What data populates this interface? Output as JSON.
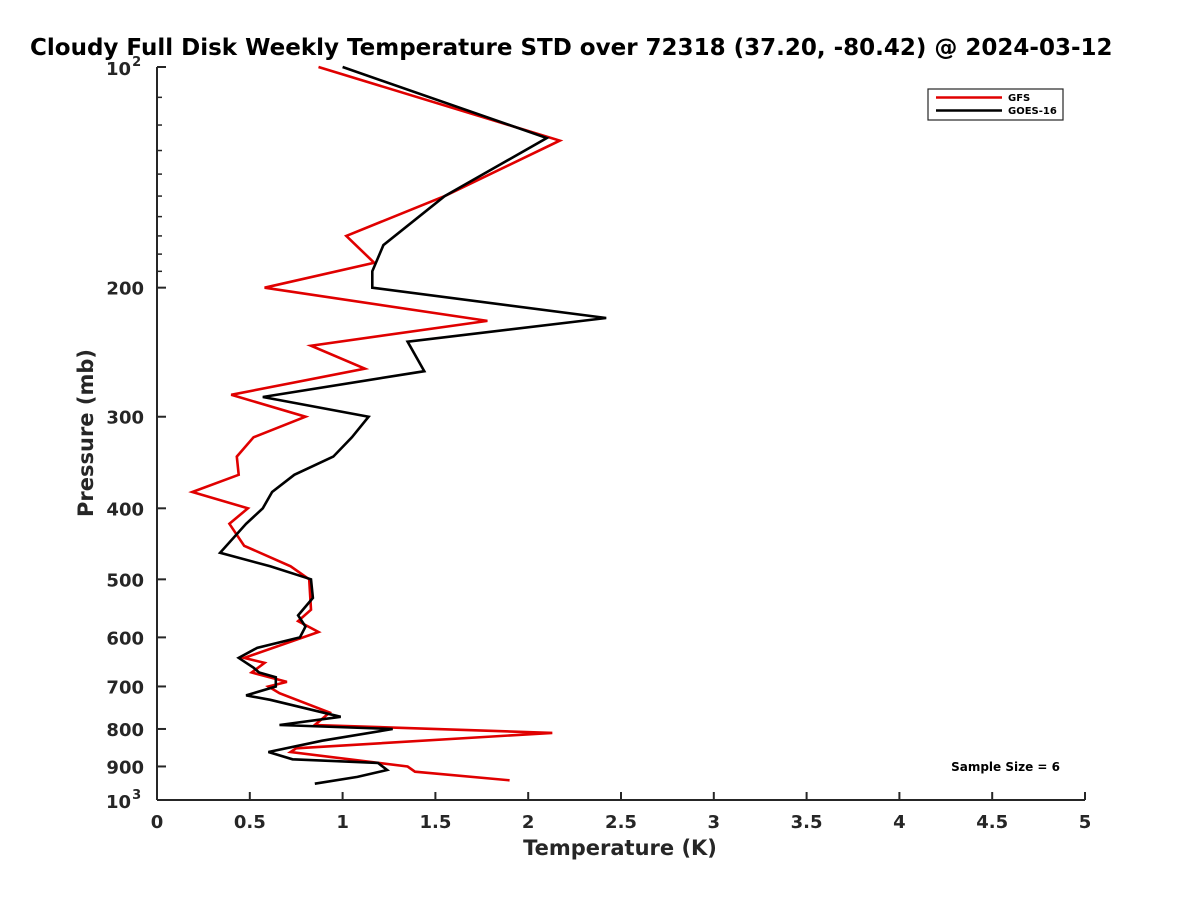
{
  "chart_data": {
    "type": "line",
    "title": "Cloudy Full Disk Weekly Temperature STD over 72318 (37.20, -80.42) @ 2024-03-12",
    "xlabel": "Temperature (K)",
    "ylabel": "Pressure (mb)",
    "xlim": [
      0,
      5
    ],
    "ylim": [
      100,
      1000
    ],
    "yscale": "log",
    "y_reversed": true,
    "x_ticks": [
      0,
      0.5,
      1,
      1.5,
      2,
      2.5,
      3,
      3.5,
      4,
      4.5,
      5
    ],
    "x_tick_labels": [
      "0",
      "0.5",
      "1",
      "1.5",
      "2",
      "2.5",
      "3",
      "3.5",
      "4",
      "4.5",
      "5"
    ],
    "y_ticks": [
      200,
      300,
      400,
      500,
      600,
      700,
      800,
      900
    ],
    "y_tick_labels": [
      "200",
      "300",
      "400",
      "500",
      "600",
      "700",
      "800",
      "900"
    ],
    "y_end_labels": [
      {
        "value": 100,
        "base": "10",
        "exponent": "2"
      },
      {
        "value": 1000,
        "base": "10",
        "exponent": "3"
      }
    ],
    "legend_position": "top-right",
    "annotation": "Sample Size = 6",
    "series": [
      {
        "name": "GFS",
        "color": "#e00000",
        "x": [
          0.87,
          2.17,
          1.55,
          1.02,
          1.17,
          0.58,
          1.78,
          0.83,
          1.12,
          0.4,
          0.8,
          0.52,
          0.43,
          0.44,
          0.19,
          0.49,
          0.39,
          0.47,
          0.72,
          0.82,
          0.83,
          0.76,
          0.87,
          0.47,
          0.58,
          0.51,
          0.7,
          0.6,
          0.66,
          0.93,
          0.85,
          2.13,
          0.75,
          0.72,
          1.35,
          1.39,
          1.9
        ],
        "y": [
          100,
          126,
          150,
          170,
          185,
          200,
          222,
          240,
          258,
          280,
          300,
          320,
          340,
          360,
          380,
          400,
          420,
          450,
          480,
          500,
          550,
          570,
          590,
          640,
          650,
          670,
          690,
          700,
          715,
          760,
          790,
          810,
          850,
          860,
          900,
          915,
          940
        ]
      },
      {
        "name": "GOES-16",
        "color": "#000000",
        "x": [
          1.0,
          2.1,
          1.55,
          1.22,
          1.16,
          1.16,
          2.42,
          1.35,
          1.44,
          0.57,
          1.14,
          1.05,
          0.95,
          0.74,
          0.62,
          0.57,
          0.48,
          0.34,
          0.61,
          0.83,
          0.84,
          0.76,
          0.8,
          0.77,
          0.54,
          0.44,
          0.52,
          0.55,
          0.64,
          0.64,
          0.48,
          0.61,
          0.99,
          0.66,
          1.27,
          0.89,
          0.6,
          0.73,
          1.19,
          1.24,
          1.08,
          0.85
        ],
        "y": [
          100,
          125,
          150,
          175,
          190,
          200,
          220,
          237,
          260,
          282,
          300,
          320,
          340,
          360,
          380,
          400,
          420,
          460,
          480,
          500,
          530,
          560,
          580,
          600,
          620,
          640,
          660,
          670,
          680,
          700,
          720,
          730,
          770,
          790,
          800,
          830,
          860,
          880,
          890,
          910,
          930,
          950
        ]
      }
    ]
  }
}
